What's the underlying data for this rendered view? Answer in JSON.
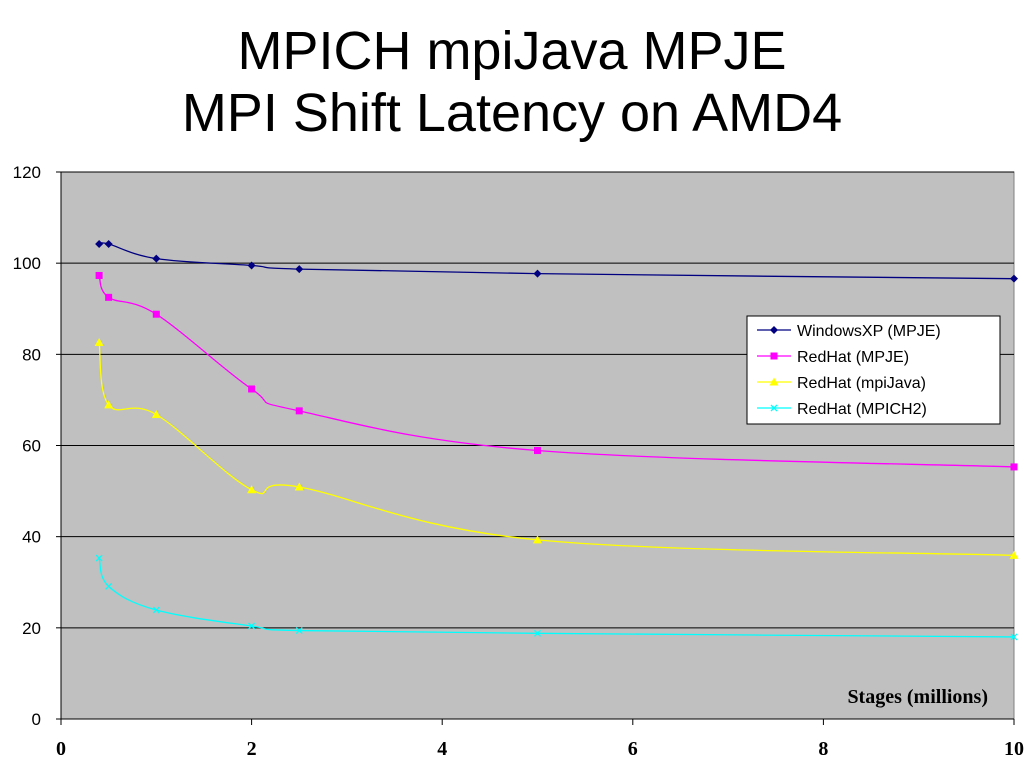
{
  "chart_data": {
    "type": "line",
    "title": [
      "MPICH mpiJava MPJE",
      "MPI Shift Latency on AMD4"
    ],
    "xlabel": "Stages (millions)",
    "ylabel": "",
    "xlim": [
      0,
      10
    ],
    "ylim": [
      0,
      120
    ],
    "xticks": [
      0,
      2,
      4,
      6,
      8,
      10
    ],
    "yticks": [
      0,
      20,
      40,
      60,
      80,
      100,
      120
    ],
    "xtick_labels": [
      "0",
      "2",
      "4",
      "6",
      "8",
      "10"
    ],
    "ytick_labels": [
      "0",
      "20",
      "40",
      "60",
      "80",
      "100",
      "120"
    ],
    "grid": "horizontal",
    "plot_background": "#c0c0c0",
    "legend_position": "right",
    "series": [
      {
        "name": "WindowsXP (MPJE)",
        "color": "#000080",
        "marker": "diamond",
        "x": [
          0.4,
          0.5,
          1,
          2,
          2.5,
          5,
          10
        ],
        "y": [
          104.2,
          104.2,
          101,
          99.5,
          98.7,
          97.7,
          96.6
        ]
      },
      {
        "name": "RedHat (MPJE)",
        "color": "#ff00ff",
        "marker": "square",
        "x": [
          0.4,
          0.5,
          1,
          2,
          2.5,
          5,
          10
        ],
        "y": [
          97.3,
          92.5,
          88.8,
          72.4,
          67.6,
          58.9,
          55.3
        ]
      },
      {
        "name": "RedHat (mpiJava)",
        "color": "#ffff00",
        "marker": "triangle",
        "x": [
          0.4,
          0.5,
          1,
          2,
          2.5,
          5,
          10
        ],
        "y": [
          82.6,
          68.9,
          66.8,
          50.3,
          50.9,
          39.3,
          35.9
        ]
      },
      {
        "name": "RedHat (MPICH2)",
        "color": "#00ffff",
        "marker": "x",
        "x": [
          0.4,
          0.5,
          1,
          2,
          2.5,
          5,
          10
        ],
        "y": [
          35.3,
          29.1,
          23.9,
          20.4,
          19.4,
          18.8,
          18.0
        ]
      }
    ]
  }
}
